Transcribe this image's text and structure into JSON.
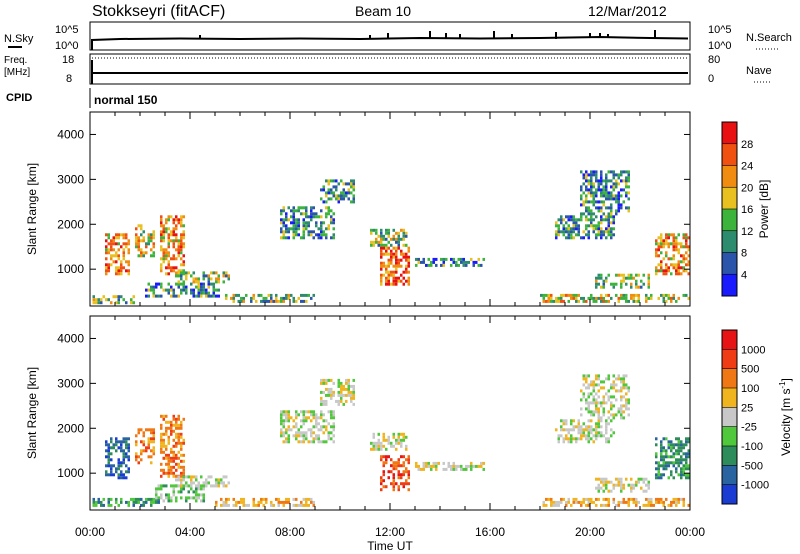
{
  "header": {
    "station": "Stokkseyri (fitACF)",
    "beam": "Beam 10",
    "date": "12/Mar/2012"
  },
  "top_panels": {
    "nsky": {
      "label": "N.Sky",
      "ticks": [
        "10^5",
        "10^0"
      ]
    },
    "nsearch": {
      "label": "N.Search",
      "ticks": [
        "10^5",
        "10^0"
      ]
    },
    "freq": {
      "label_line1": "Freq.",
      "label_line2": "[MHz]",
      "ticks": [
        "18",
        "8"
      ]
    },
    "nave": {
      "label": "Nave",
      "ticks": [
        "80",
        "0"
      ]
    },
    "cpid": {
      "label": "CPID",
      "mode": "normal 150"
    }
  },
  "chart_data": [
    {
      "type": "heatmap",
      "title": "",
      "quantity": "Power",
      "xlabel": "",
      "ylabel": "Slant Range [km]",
      "x_ticks": [
        "00:00",
        "04:00",
        "08:00",
        "12:00",
        "16:00",
        "20:00",
        "00:00"
      ],
      "x_range_hours": [
        0,
        24
      ],
      "ylim": [
        180,
        4500
      ],
      "y_ticks": [
        1000,
        2000,
        3000,
        4000
      ],
      "colorbar": {
        "label": "Power [dB]",
        "range": [
          0,
          32
        ],
        "ticks": [
          "4",
          "8",
          "12",
          "16",
          "20",
          "24",
          "28"
        ],
        "colors": [
          "#1a1aff",
          "#2a55aa",
          "#2e8c6e",
          "#3cb43c",
          "#e8c020",
          "#f08c10",
          "#f05010",
          "#e81010"
        ]
      },
      "regions": [
        {
          "t": [
            0.1,
            1.8
          ],
          "r": [
            250,
            420
          ],
          "value": 14
        },
        {
          "t": [
            0.6,
            1.6
          ],
          "r": [
            900,
            1800
          ],
          "value": 22
        },
        {
          "t": [
            1.8,
            2.6
          ],
          "r": [
            1300,
            2000
          ],
          "value": 16
        },
        {
          "t": [
            2.8,
            3.8
          ],
          "r": [
            900,
            2200
          ],
          "value": 20
        },
        {
          "t": [
            2.2,
            5.2
          ],
          "r": [
            400,
            700
          ],
          "value": 10
        },
        {
          "t": [
            3.4,
            5.6
          ],
          "r": [
            700,
            950
          ],
          "value": 14
        },
        {
          "t": [
            5.4,
            9.0
          ],
          "r": [
            250,
            450
          ],
          "value": 12
        },
        {
          "t": [
            7.6,
            9.8
          ],
          "r": [
            1700,
            2400
          ],
          "value": 10
        },
        {
          "t": [
            9.2,
            10.6
          ],
          "r": [
            2500,
            3000
          ],
          "value": 8
        },
        {
          "t": [
            11.2,
            12.6
          ],
          "r": [
            1500,
            1900
          ],
          "value": 14
        },
        {
          "t": [
            11.6,
            12.8
          ],
          "r": [
            650,
            1500
          ],
          "value": 24
        },
        {
          "t": [
            13.0,
            15.8
          ],
          "r": [
            1050,
            1250
          ],
          "value": 8
        },
        {
          "t": [
            18.6,
            21.0
          ],
          "r": [
            1700,
            2200
          ],
          "value": 10
        },
        {
          "t": [
            19.6,
            21.6
          ],
          "r": [
            2200,
            3200
          ],
          "value": 8
        },
        {
          "t": [
            20.2,
            22.4
          ],
          "r": [
            600,
            900
          ],
          "value": 12
        },
        {
          "t": [
            22.6,
            24.0
          ],
          "r": [
            900,
            1800
          ],
          "value": 20
        },
        {
          "t": [
            18.0,
            24.0
          ],
          "r": [
            250,
            450
          ],
          "value": 16
        }
      ]
    },
    {
      "type": "heatmap",
      "title": "",
      "quantity": "Velocity",
      "xlabel": "Time UT",
      "ylabel": "Slant Range [km]",
      "x_ticks": [
        "00:00",
        "04:00",
        "08:00",
        "12:00",
        "16:00",
        "20:00",
        "00:00"
      ],
      "x_range_hours": [
        0,
        24
      ],
      "ylim": [
        180,
        4500
      ],
      "y_ticks": [
        1000,
        2000,
        3000,
        4000
      ],
      "colorbar": {
        "label": "Velocity [m s",
        "label_superscript": "-1",
        "label_end": "]",
        "ticks": [
          "1000",
          "500",
          "100",
          "25",
          "-25",
          "-100",
          "-500",
          "-1000"
        ],
        "colors": [
          "#1a3cd2",
          "#2a64a0",
          "#2e8c5a",
          "#50c83c",
          "#c8c8c8",
          "#f0b41e",
          "#f07814",
          "#f03c14",
          "#e61414"
        ]
      },
      "regions": [
        {
          "t": [
            0.1,
            2.8
          ],
          "r": [
            250,
            450
          ],
          "value": 2
        },
        {
          "t": [
            0.6,
            1.6
          ],
          "r": [
            900,
            1800
          ],
          "value": 1
        },
        {
          "t": [
            1.8,
            2.6
          ],
          "r": [
            1200,
            2000
          ],
          "value": 6
        },
        {
          "t": [
            2.8,
            3.8
          ],
          "r": [
            900,
            2300
          ],
          "value": 6
        },
        {
          "t": [
            2.6,
            4.6
          ],
          "r": [
            400,
            750
          ],
          "value": 3
        },
        {
          "t": [
            3.4,
            5.6
          ],
          "r": [
            700,
            950
          ],
          "value": 4
        },
        {
          "t": [
            5.0,
            9.0
          ],
          "r": [
            250,
            450
          ],
          "value": 5
        },
        {
          "t": [
            7.6,
            9.8
          ],
          "r": [
            1700,
            2400
          ],
          "value": 4
        },
        {
          "t": [
            9.2,
            10.6
          ],
          "r": [
            2500,
            3100
          ],
          "value": 4
        },
        {
          "t": [
            11.2,
            12.6
          ],
          "r": [
            1500,
            1900
          ],
          "value": 4
        },
        {
          "t": [
            11.6,
            12.8
          ],
          "r": [
            650,
            1400
          ],
          "value": 7
        },
        {
          "t": [
            13.0,
            15.8
          ],
          "r": [
            1050,
            1250
          ],
          "value": 4
        },
        {
          "t": [
            18.6,
            21.0
          ],
          "r": [
            1700,
            2200
          ],
          "value": 4
        },
        {
          "t": [
            19.6,
            21.6
          ],
          "r": [
            2200,
            3200
          ],
          "value": 4
        },
        {
          "t": [
            20.2,
            22.4
          ],
          "r": [
            600,
            900
          ],
          "value": 4
        },
        {
          "t": [
            22.6,
            24.0
          ],
          "r": [
            900,
            1800
          ],
          "value": 2
        },
        {
          "t": [
            18.0,
            24.0
          ],
          "r": [
            250,
            450
          ],
          "value": 5
        }
      ]
    }
  ]
}
